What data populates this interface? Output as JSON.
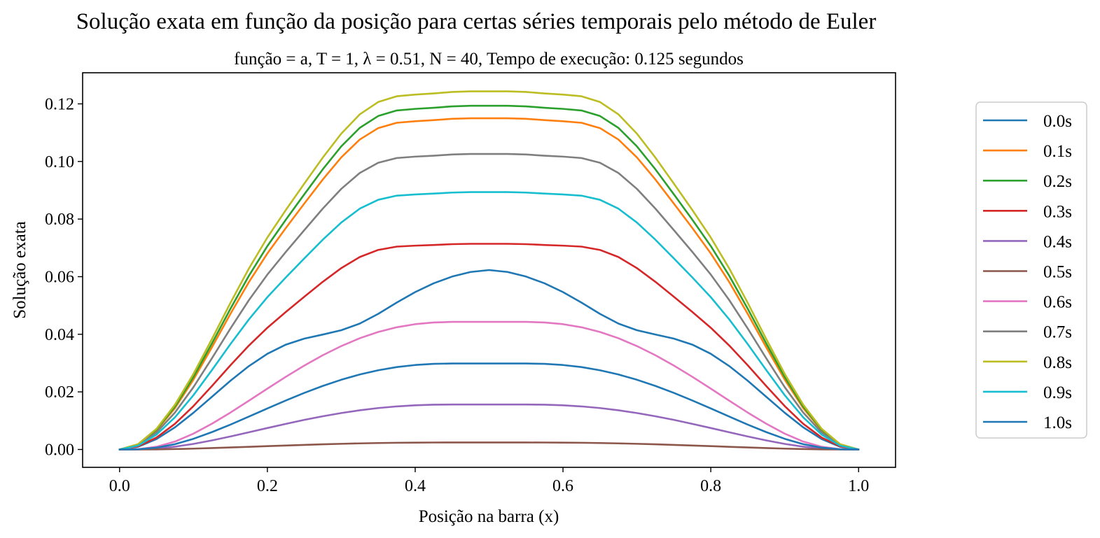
{
  "chart_data": {
    "type": "line",
    "title": "Solução exata em função da posição para certas séries temporais pelo método de Euler",
    "subtitle": "função = a, T = 1, λ = 0.51, N = 40, Tempo de execução: 0.125 segundos",
    "xlabel": "Posição na barra (x)",
    "ylabel": "Solução exata",
    "xlim": [
      -0.05,
      1.05
    ],
    "ylim": [
      -0.0062,
      0.1308
    ],
    "xticks": [
      "0.0",
      "0.2",
      "0.4",
      "0.6",
      "0.8",
      "1.0"
    ],
    "yticks": [
      "0.00",
      "0.02",
      "0.04",
      "0.06",
      "0.08",
      "0.10",
      "0.12"
    ],
    "grid": false,
    "legend_position": "outside-right",
    "x": [
      0,
      0.025,
      0.05,
      0.075,
      0.1,
      0.125,
      0.15,
      0.175,
      0.2,
      0.225,
      0.25,
      0.275,
      0.3,
      0.325,
      0.35,
      0.375,
      0.4,
      0.425,
      0.45,
      0.475,
      0.5,
      0.525,
      0.55,
      0.575,
      0.6,
      0.625,
      0.65,
      0.675,
      0.7,
      0.725,
      0.75,
      0.775,
      0.8,
      0.825,
      0.85,
      0.875,
      0.9,
      0.925,
      0.95,
      0.975,
      1.0
    ],
    "series": [
      {
        "name": "0.0s",
        "color": "#1f77b4",
        "values": [
          0,
          0.00094,
          0.00362,
          0.00771,
          0.01276,
          0.0183,
          0.02385,
          0.02895,
          0.03322,
          0.03641,
          0.0385,
          0.03991,
          0.04141,
          0.04371,
          0.04708,
          0.051,
          0.05465,
          0.0577,
          0.06004,
          0.06163,
          0.0623,
          0.06163,
          0.06004,
          0.0577,
          0.05465,
          0.051,
          0.04708,
          0.04371,
          0.04141,
          0.03991,
          0.0385,
          0.03641,
          0.03322,
          0.02895,
          0.02385,
          0.0183,
          0.01276,
          0.00771,
          0.00362,
          0.00094,
          0
        ]
      },
      {
        "name": "0.1s",
        "color": "#ff7f0e",
        "values": [
          0,
          0.0017,
          0.00664,
          0.01439,
          0.02428,
          0.0355,
          0.04708,
          0.05812,
          0.06807,
          0.0769,
          0.0854,
          0.09375,
          0.10143,
          0.10762,
          0.11159,
          0.11343,
          0.11397,
          0.11435,
          0.11481,
          0.115,
          0.115,
          0.115,
          0.11481,
          0.11435,
          0.11397,
          0.11343,
          0.11159,
          0.10762,
          0.10143,
          0.09375,
          0.0854,
          0.0769,
          0.06807,
          0.05812,
          0.04708,
          0.0355,
          0.02428,
          0.01439,
          0.00664,
          0.0017,
          0
        ]
      },
      {
        "name": "0.2s",
        "color": "#2ca02c",
        "values": [
          0,
          0.00176,
          0.00689,
          0.01493,
          0.02519,
          0.03683,
          0.04885,
          0.06031,
          0.07063,
          0.07979,
          0.08861,
          0.09728,
          0.10524,
          0.11167,
          0.11579,
          0.1177,
          0.11826,
          0.11865,
          0.11913,
          0.11933,
          0.11933,
          0.11933,
          0.11913,
          0.11865,
          0.11826,
          0.1177,
          0.11579,
          0.11167,
          0.10524,
          0.09728,
          0.08861,
          0.07979,
          0.07063,
          0.06031,
          0.04885,
          0.03683,
          0.02519,
          0.01493,
          0.00689,
          0.00176,
          0
        ]
      },
      {
        "name": "0.3s",
        "color": "#d62728",
        "values": [
          0,
          0.00106,
          0.00413,
          0.00893,
          0.01508,
          0.02205,
          0.02923,
          0.03609,
          0.04227,
          0.04775,
          0.05303,
          0.05822,
          0.06298,
          0.06683,
          0.06929,
          0.07044,
          0.07077,
          0.07101,
          0.07129,
          0.07141,
          0.07141,
          0.07141,
          0.07129,
          0.07101,
          0.07077,
          0.07044,
          0.06929,
          0.06683,
          0.06298,
          0.05822,
          0.05303,
          0.04775,
          0.04227,
          0.03609,
          0.02923,
          0.02205,
          0.01508,
          0.00893,
          0.00413,
          0.00106,
          0
        ]
      },
      {
        "name": "0.4s",
        "color": "#9467bd",
        "values": [
          0,
          4e-05,
          0.00033,
          0.00097,
          0.00194,
          0.00316,
          0.00452,
          0.00597,
          0.00745,
          0.0089,
          0.01028,
          0.01154,
          0.01266,
          0.01362,
          0.01439,
          0.01496,
          0.01534,
          0.01555,
          0.01562,
          0.01562,
          0.01562,
          0.01562,
          0.01562,
          0.01555,
          0.01534,
          0.01496,
          0.01439,
          0.01362,
          0.01266,
          0.01154,
          0.01028,
          0.0089,
          0.00745,
          0.00597,
          0.00452,
          0.00316,
          0.00194,
          0.00097,
          0.00033,
          4e-05,
          0
        ]
      },
      {
        "name": "0.5s",
        "color": "#8c564b",
        "values": [
          0,
          1e-05,
          5e-05,
          0.00015,
          0.0003,
          0.00049,
          0.0007,
          0.00093,
          0.00116,
          0.00138,
          0.0016,
          0.00179,
          0.00197,
          0.00212,
          0.00224,
          0.00233,
          0.00239,
          0.00242,
          0.00243,
          0.00243,
          0.00243,
          0.00243,
          0.00243,
          0.00242,
          0.00239,
          0.00233,
          0.00224,
          0.00212,
          0.00197,
          0.00179,
          0.0016,
          0.00138,
          0.00116,
          0.00093,
          0.0007,
          0.00049,
          0.0003,
          0.00015,
          5e-05,
          1e-05,
          0
        ]
      },
      {
        "name": "0.6s",
        "color": "#e377c2",
        "values": [
          0,
          0.00012,
          0.00095,
          0.00275,
          0.0055,
          0.00895,
          0.01282,
          0.01694,
          0.02113,
          0.02524,
          0.02915,
          0.03273,
          0.03591,
          0.03863,
          0.04081,
          0.04243,
          0.04351,
          0.0441,
          0.0443,
          0.0443,
          0.0443,
          0.0443,
          0.0443,
          0.0441,
          0.04351,
          0.04243,
          0.04081,
          0.03863,
          0.03591,
          0.03273,
          0.02915,
          0.02524,
          0.02113,
          0.01694,
          0.01282,
          0.00895,
          0.0055,
          0.00275,
          0.00095,
          0.00012,
          0
        ]
      },
      {
        "name": "0.7s",
        "color": "#7f7f7f",
        "values": [
          0,
          0.00152,
          0.00592,
          0.01284,
          0.02166,
          0.03167,
          0.042,
          0.05185,
          0.06073,
          0.06861,
          0.07618,
          0.08364,
          0.09049,
          0.09601,
          0.09955,
          0.1012,
          0.10168,
          0.10201,
          0.10242,
          0.1026,
          0.1026,
          0.1026,
          0.10242,
          0.10201,
          0.10168,
          0.1012,
          0.09955,
          0.09601,
          0.09049,
          0.08364,
          0.07618,
          0.06861,
          0.06073,
          0.05185,
          0.042,
          0.03167,
          0.02166,
          0.01284,
          0.00592,
          0.00152,
          0
        ]
      },
      {
        "name": "0.8s",
        "color": "#bcbd22",
        "values": [
          0,
          0.00184,
          0.00718,
          0.01556,
          0.02625,
          0.03838,
          0.0509,
          0.06284,
          0.0736,
          0.08315,
          0.09233,
          0.10136,
          0.10967,
          0.11636,
          0.12065,
          0.12264,
          0.12322,
          0.12363,
          0.12413,
          0.12434,
          0.12434,
          0.12434,
          0.12413,
          0.12363,
          0.12322,
          0.12264,
          0.12065,
          0.11636,
          0.10967,
          0.10136,
          0.09233,
          0.08315,
          0.0736,
          0.06284,
          0.0509,
          0.03838,
          0.02625,
          0.01556,
          0.00718,
          0.00184,
          0
        ]
      },
      {
        "name": "0.9s",
        "color": "#17becf",
        "values": [
          0,
          0.00133,
          0.00516,
          0.01118,
          0.01886,
          0.02758,
          0.03658,
          0.04516,
          0.05289,
          0.05975,
          0.06635,
          0.07284,
          0.07881,
          0.08362,
          0.0867,
          0.08813,
          0.08855,
          0.08885,
          0.0892,
          0.08936,
          0.08936,
          0.08936,
          0.0892,
          0.08885,
          0.08855,
          0.08813,
          0.0867,
          0.08362,
          0.07881,
          0.07284,
          0.06635,
          0.05975,
          0.05289,
          0.04516,
          0.03658,
          0.02758,
          0.01886,
          0.01118,
          0.00516,
          0.00133,
          0
        ]
      },
      {
        "name": "1.0s",
        "color": "#1f77b4",
        "values": [
          0,
          8e-05,
          0.00064,
          0.00185,
          0.00371,
          0.00604,
          0.00864,
          0.01142,
          0.01424,
          0.01701,
          0.01965,
          0.02207,
          0.02421,
          0.02604,
          0.02751,
          0.02861,
          0.02933,
          0.02973,
          0.02986,
          0.02986,
          0.02986,
          0.02986,
          0.02986,
          0.02973,
          0.02933,
          0.02861,
          0.02751,
          0.02604,
          0.02421,
          0.02207,
          0.01965,
          0.01701,
          0.01424,
          0.01142,
          0.00864,
          0.00604,
          0.00371,
          0.00185,
          0.00064,
          8e-05,
          0
        ]
      }
    ]
  }
}
